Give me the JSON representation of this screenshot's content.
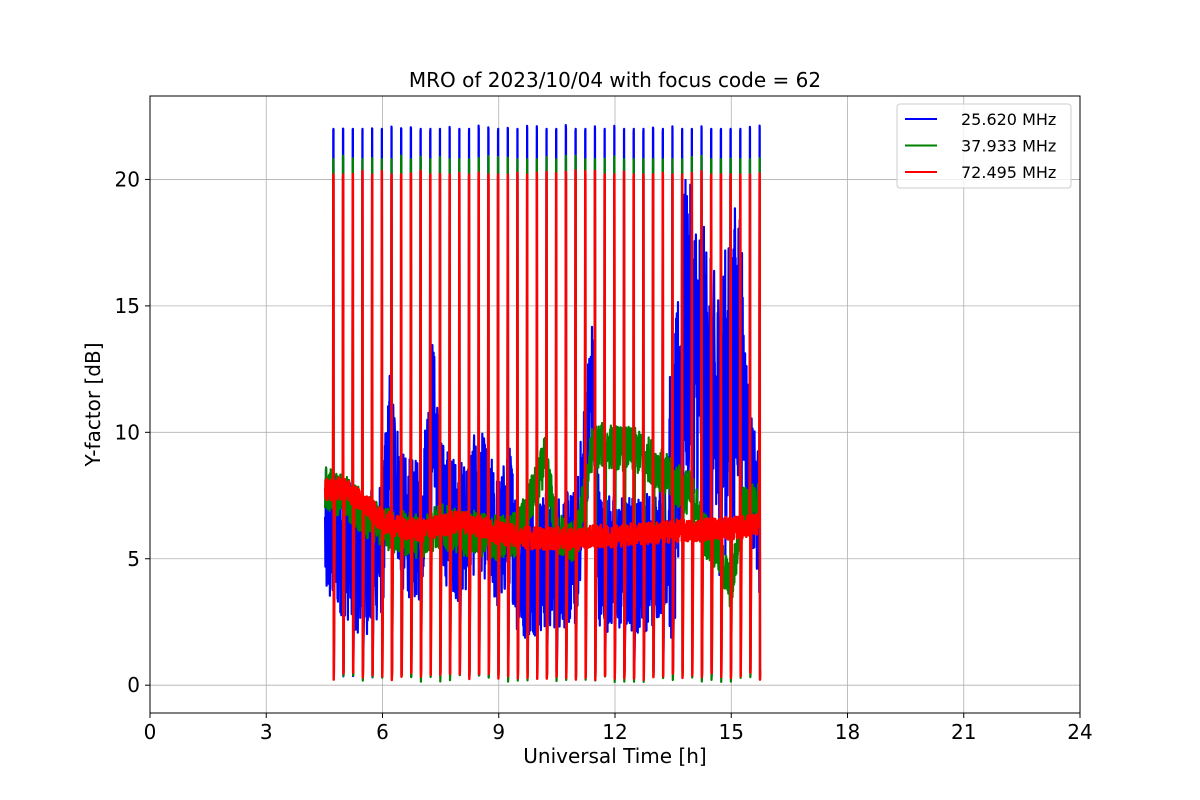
{
  "chart_data": {
    "type": "line",
    "title": "MRO of 2023/10/04 with focus code = 62",
    "xlabel": "Universal Time [h]",
    "ylabel": "Y-factor [dB]",
    "xlim": [
      0,
      24
    ],
    "ylim": [
      -1.1,
      23.3
    ],
    "xticks": [
      0,
      3,
      6,
      9,
      12,
      15,
      18,
      21,
      24
    ],
    "yticks": [
      0,
      5,
      10,
      15,
      20
    ],
    "grid": true,
    "legend_position": "top-right",
    "calibration_cycle": {
      "start_h": 4.5,
      "end_h": 15.75,
      "period_h": 0.25,
      "peak_levels_db": {
        "25.620 MHz": 22.0,
        "37.933 MHz": 20.8,
        "72.495 MHz": 20.2
      },
      "floor_levels_db": {
        "25.620 MHz": 0.6,
        "37.933 MHz": 0.4,
        "72.495 MHz": 0.5
      }
    },
    "series": [
      {
        "name": "25.620 MHz",
        "color": "#0000ff",
        "x": [
          4.5,
          5.0,
          5.5,
          6.0,
          6.2,
          6.5,
          7.0,
          7.3,
          7.5,
          8.0,
          8.5,
          9.0,
          9.3,
          9.5,
          10.0,
          10.5,
          11.0,
          11.4,
          11.6,
          12.0,
          12.5,
          13.0,
          13.5,
          13.8,
          14.0,
          14.3,
          14.6,
          15.0,
          15.2,
          15.5,
          15.8
        ],
        "y": [
          5.8,
          5.5,
          4.6,
          5.5,
          10.0,
          6.4,
          6.0,
          11.2,
          7.0,
          6.0,
          7.5,
          5.5,
          6.8,
          4.5,
          4.8,
          5.0,
          5.0,
          12.0,
          5.0,
          4.8,
          4.8,
          5.0,
          6.5,
          14.0,
          13.5,
          12.0,
          10.0,
          12.0,
          14.0,
          8.0,
          5.8
        ]
      },
      {
        "name": "37.933 MHz",
        "color": "#008000",
        "x": [
          4.5,
          5.0,
          5.5,
          6.0,
          6.5,
          7.0,
          7.5,
          8.0,
          8.5,
          9.0,
          9.5,
          10.0,
          10.2,
          10.5,
          11.0,
          11.4,
          11.6,
          12.0,
          12.5,
          13.0,
          13.5,
          14.0,
          14.3,
          14.6,
          15.0,
          15.3,
          15.8
        ],
        "y": [
          7.8,
          7.5,
          6.8,
          6.3,
          6.0,
          5.9,
          6.3,
          6.0,
          6.0,
          5.8,
          6.0,
          8.0,
          9.0,
          6.0,
          5.6,
          9.3,
          9.5,
          9.4,
          9.3,
          8.8,
          8.0,
          7.5,
          6.0,
          5.5,
          3.8,
          7.0,
          7.2
        ]
      },
      {
        "name": "72.495 MHz",
        "color": "#ff0000",
        "x": [
          4.5,
          5.0,
          5.5,
          6.0,
          6.5,
          7.0,
          7.5,
          8.0,
          8.5,
          9.0,
          9.5,
          10.0,
          10.5,
          11.0,
          11.5,
          12.0,
          12.5,
          13.0,
          13.5,
          14.0,
          14.5,
          15.0,
          15.5,
          15.8
        ],
        "y": [
          7.7,
          7.8,
          7.2,
          6.5,
          6.2,
          6.1,
          6.3,
          6.5,
          6.3,
          6.0,
          5.9,
          5.8,
          5.8,
          5.8,
          5.9,
          5.9,
          6.0,
          6.0,
          6.1,
          6.1,
          6.2,
          6.2,
          6.3,
          6.4
        ]
      }
    ]
  }
}
